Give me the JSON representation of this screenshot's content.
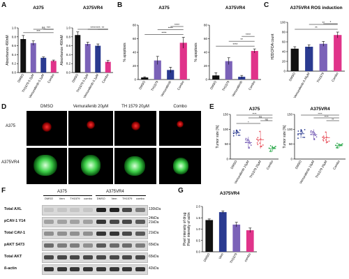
{
  "panels": {
    "A": {
      "letter": "A",
      "charts": [
        {
          "title": "A375",
          "ylabel": "Absorbance 490nM",
          "ylim": [
            0,
            1.0
          ],
          "yticks": [
            "0.0",
            "0.2",
            "0.4",
            "0.6",
            "0.8",
            "1.0"
          ],
          "categories": [
            "DMSO",
            "TH1579 0.2μM",
            "Vemurafenib 0.1μM",
            "Combo"
          ],
          "values": [
            0.75,
            0.66,
            0.33,
            0.26
          ],
          "errors": [
            0.08,
            0.05,
            0.02,
            0.02
          ],
          "colors": [
            "#111111",
            "#7b62b8",
            "#2a3a90",
            "#e0338a"
          ],
          "sig": [
            {
              "from": 0,
              "to": 3,
              "label": "***"
            },
            {
              "from": 1,
              "to": 3,
              "label": "ns"
            },
            {
              "from": 2,
              "to": 3,
              "label": "***"
            }
          ]
        },
        {
          "title": "A375VR4",
          "ylabel": "Absorbance 490nM",
          "ylim": [
            0,
            1.0
          ],
          "yticks": [
            "0.0",
            "0.2",
            "0.4",
            "0.6",
            "0.8",
            "1.0"
          ],
          "categories": [
            "DMSO",
            "TH1579 0.2μM",
            "Vemurafenib 0.1μM",
            "Combo"
          ],
          "values": [
            0.84,
            0.64,
            0.6,
            0.24
          ],
          "errors": [
            0.07,
            0.04,
            0.04,
            0.03
          ],
          "colors": [
            "#111111",
            "#7b62b8",
            "#2a3a90",
            "#e0338a"
          ],
          "sig": [
            {
              "from": 0,
              "to": 3,
              "label": "****"
            },
            {
              "from": 1,
              "to": 3,
              "label": "****"
            },
            {
              "from": 2,
              "to": 3,
              "label": "**"
            }
          ]
        }
      ]
    },
    "B": {
      "letter": "B",
      "charts": [
        {
          "title": "A375",
          "ylabel": "% apoptosis",
          "ylim": [
            0,
            80
          ],
          "yticks": [
            "0",
            "20",
            "40",
            "60",
            "80"
          ],
          "categories": [
            "DMSO",
            "TH1579",
            "Vemurafenib",
            "Combo"
          ],
          "values": [
            3,
            28,
            14,
            54
          ],
          "errors": [
            1,
            6,
            4,
            8
          ],
          "colors": [
            "#111111",
            "#7b62b8",
            "#2a3a90",
            "#e0338a"
          ],
          "sig": [
            {
              "from": 0,
              "to": 3,
              "label": "****"
            },
            {
              "from": 1,
              "to": 3,
              "label": "****"
            },
            {
              "from": 2,
              "to": 3,
              "label": "****"
            }
          ]
        },
        {
          "title": "A375VR4",
          "ylabel": "% apoptosis",
          "ylim": [
            0,
            80
          ],
          "yticks": [
            "0",
            "20",
            "40",
            "60",
            "80"
          ],
          "categories": [
            "DMSO",
            "TH1579",
            "Vemurafenib",
            "Combo"
          ],
          "values": [
            6,
            27,
            4,
            42
          ],
          "errors": [
            4,
            5,
            2,
            3
          ],
          "colors": [
            "#111111",
            "#7b62b8",
            "#2a3a90",
            "#e0338a"
          ],
          "sig": [
            {
              "from": 0,
              "to": 3,
              "label": "****"
            },
            {
              "from": 1,
              "to": 3,
              "label": "**"
            },
            {
              "from": 2,
              "to": 3,
              "label": "****"
            }
          ]
        }
      ]
    },
    "C": {
      "letter": "C",
      "title": "A375VR4 ROS induction",
      "ylabel": "H2DCFDA count",
      "ylim": [
        0,
        100
      ],
      "yticks": [
        "0",
        "20",
        "40",
        "60",
        "80",
        "100"
      ],
      "categories": [
        "DMSO",
        "Vemurafenib 0.45μM",
        "TH1579",
        "Combo"
      ],
      "values": [
        46,
        50,
        56,
        74
      ],
      "errors": [
        4,
        4,
        5,
        6
      ],
      "colors": [
        "#111111",
        "#2a3a90",
        "#7b62b8",
        "#e0338a"
      ],
      "sig": [
        {
          "from": 0,
          "to": 3,
          "label": "**"
        },
        {
          "from": 1,
          "to": 3,
          "label": "**"
        },
        {
          "from": 2,
          "to": 3,
          "label": "*"
        }
      ]
    },
    "D": {
      "letter": "D",
      "columns": [
        "DMSO",
        "Vemurafenib 20μM",
        "TH 1579 20μM",
        "Combo"
      ],
      "rows": [
        "A375",
        "A375VR4"
      ]
    },
    "E": {
      "letter": "E",
      "ylabel": "Tumor size [%]",
      "ylim": [
        0,
        150
      ],
      "yticks": [
        "0",
        "50",
        "100",
        "150"
      ],
      "charts": [
        {
          "title": "A375",
          "categories": [
            "DMSO",
            "Vemurafenib 10μM",
            "TH1579 20μM",
            "Combo"
          ],
          "means": [
            88,
            55,
            65,
            35
          ],
          "sd": [
            10,
            20,
            30,
            10
          ],
          "colors": [
            "#2a3a90",
            "#7b62b8",
            "#e8505b",
            "#2aa84a"
          ],
          "sig": [
            {
              "from": 0,
              "to": 3,
              "label": "****"
            },
            {
              "from": 1,
              "to": 3,
              "label": "ns"
            },
            {
              "from": 2,
              "to": 3,
              "label": "ns"
            },
            {
              "from": 0,
              "to": 2,
              "label": "*"
            }
          ]
        },
        {
          "title": "A375VR4",
          "categories": [
            "DMSO",
            "Vemurafenib 10μM",
            "TH1579 20μM",
            "Combo"
          ],
          "means": [
            85,
            82,
            72,
            45
          ],
          "sd": [
            15,
            18,
            20,
            8
          ],
          "colors": [
            "#2a3a90",
            "#7b62b8",
            "#e8505b",
            "#2aa84a"
          ],
          "sig": [
            {
              "from": 0,
              "to": 3,
              "label": "****"
            },
            {
              "from": 1,
              "to": 3,
              "label": "****"
            },
            {
              "from": 2,
              "to": 3,
              "label": "**"
            }
          ]
        }
      ]
    },
    "F": {
      "letter": "F",
      "groups": [
        "A375",
        "A375VR4"
      ],
      "lanes": [
        "DMSO",
        "Vem",
        "TH1579",
        "combo",
        "DMSO",
        "Vem",
        "TH1579",
        "combo"
      ],
      "rows": [
        {
          "label": "Total AXL",
          "kda": "130kDa"
        },
        {
          "label": "pCAV-1 Y14",
          "kda": "24kDa\n21kDa"
        },
        {
          "label": "Total CAV-1",
          "kda": "21kDa"
        },
        {
          "label": "pAKT S473",
          "kda": "65kDa"
        },
        {
          "label": "Total AKT",
          "kda": "65kDa"
        },
        {
          "label": "ß-actin",
          "kda": "42kDa"
        }
      ]
    },
    "G": {
      "letter": "G",
      "title": "A375VR4",
      "ylabel": "Pixel intensity of drug\nPixel intensity of actin",
      "ylim": [
        0,
        2.0
      ],
      "yticks": [
        "0.0",
        "0.5",
        "1.0",
        "1.5",
        "2.0"
      ],
      "categories": [
        "DMSO",
        "Vem",
        "TH1579",
        "combo"
      ],
      "values": [
        1.4,
        1.75,
        1.2,
        0.95
      ],
      "errors": [
        0.05,
        0.05,
        0.1,
        0.1
      ],
      "colors": [
        "#111111",
        "#2a3a90",
        "#7b62b8",
        "#e0338a"
      ]
    }
  }
}
